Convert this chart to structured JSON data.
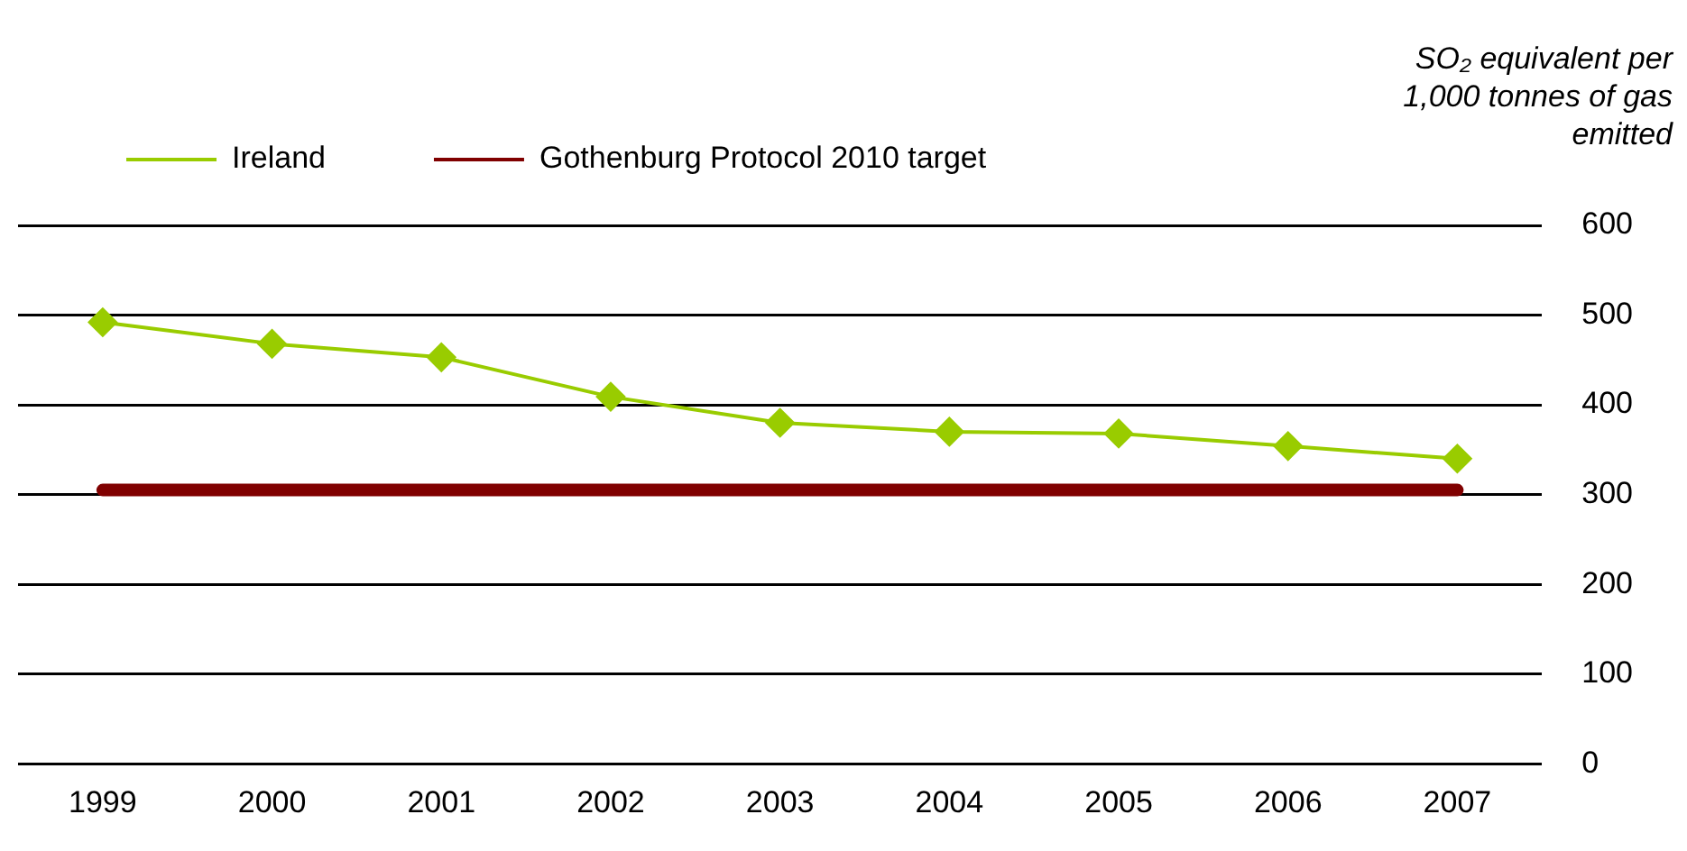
{
  "chart_data": {
    "type": "line",
    "ylabel": "SO₂ equivalent per 1,000 tonnes of gas emitted",
    "categories": [
      "1999",
      "2000",
      "2001",
      "2002",
      "2003",
      "2004",
      "2005",
      "2006",
      "2007"
    ],
    "series": [
      {
        "name": "Ireland",
        "color": "#99cc00",
        "values": [
          492,
          468,
          453,
          409,
          380,
          370,
          368,
          354,
          340
        ],
        "marker": "diamond"
      },
      {
        "name": "Gothenburg Protocol 2010 target",
        "color": "#800000",
        "values": [
          305,
          305,
          305,
          305,
          305,
          305,
          305,
          305,
          305
        ],
        "marker": "none"
      }
    ],
    "ylim": [
      0,
      600
    ],
    "yticks": [
      0,
      100,
      200,
      300,
      400,
      500,
      600
    ],
    "grid": "y",
    "legend": "top left",
    "line_style": "solid"
  }
}
